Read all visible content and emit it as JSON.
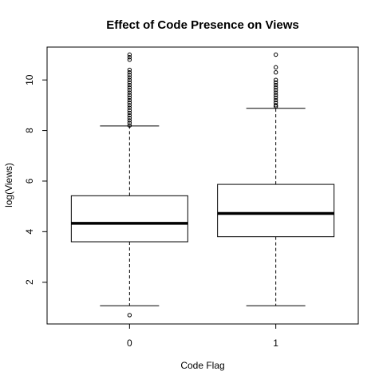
{
  "chart_data": {
    "type": "boxplot",
    "title": "Effect of Code Presence on Views",
    "xlabel": "Code Flag",
    "ylabel": "log(Views)",
    "categories": [
      "0",
      "1"
    ],
    "ylim": [
      0.35,
      11.3
    ],
    "y_ticks": [
      2,
      4,
      6,
      8,
      10
    ],
    "y_tick_labels": [
      "2",
      "4",
      "6",
      "8",
      "10"
    ],
    "grid": false,
    "legend": "none",
    "boxes": [
      {
        "category": "0",
        "whisker_low": 1.07,
        "q1": 3.6,
        "median": 4.33,
        "q3": 5.42,
        "whisker_high": 8.18,
        "outliers": [
          0.7,
          8.2,
          8.3,
          8.4,
          8.5,
          8.6,
          8.7,
          8.8,
          8.9,
          9.0,
          9.1,
          9.2,
          9.3,
          9.4,
          9.5,
          9.6,
          9.7,
          9.8,
          9.9,
          10.0,
          10.1,
          10.2,
          10.3,
          10.4,
          10.8,
          10.9,
          11.0
        ]
      },
      {
        "category": "1",
        "whisker_low": 1.07,
        "q1": 3.8,
        "median": 4.72,
        "q3": 5.87,
        "whisker_high": 8.88,
        "outliers": [
          8.95,
          9.0,
          9.1,
          9.2,
          9.3,
          9.4,
          9.5,
          9.6,
          9.7,
          9.8,
          9.9,
          10.0,
          10.3,
          10.5,
          11.0
        ]
      }
    ]
  },
  "colors": {
    "box_fill": "#ffffff",
    "stroke": "#000000",
    "background": "#ffffff"
  }
}
